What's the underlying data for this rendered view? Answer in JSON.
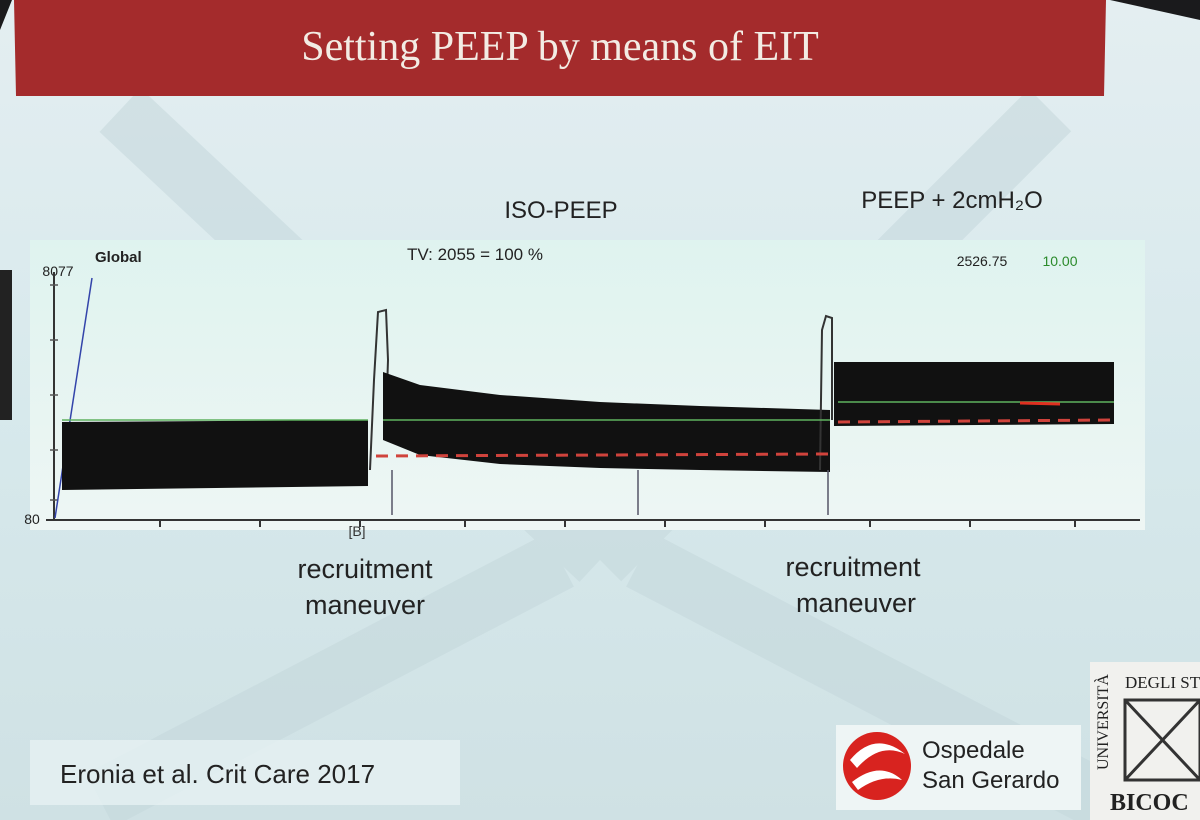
{
  "slide": {
    "title": "Setting PEEP by means of EIT",
    "labels": {
      "iso_peep": "ISO-PEEP",
      "peep_plus": "PEEP + 2cmH₂O"
    },
    "monitor": {
      "channel": "Global",
      "tidal_volume": "TV: 2055 = 100 %",
      "readout_1": "2526.75",
      "readout_2": "10.00",
      "y_top": "8077",
      "y_bottom": "80",
      "marker": "[B]"
    },
    "annotations": [
      {
        "line1": "recruitment",
        "line2": "maneuver"
      },
      {
        "line1": "recruitment",
        "line2": "maneuver"
      }
    ],
    "citation": "Eronia et al. Crit Care 2017",
    "hospital": {
      "line1": "Ospedale",
      "line2": "San Gerardo"
    },
    "university": {
      "arc_left": "UNIVERSITÀ",
      "arc_top": "DEGLI STU",
      "bottom": "BICOC"
    }
  }
}
